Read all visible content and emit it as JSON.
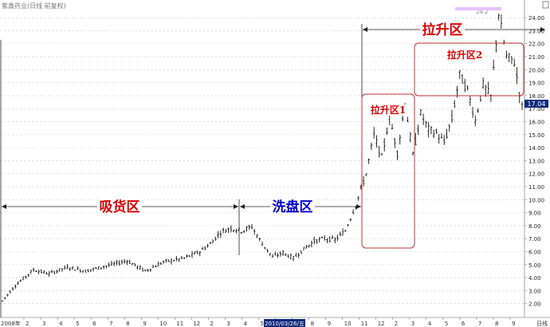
{
  "header": {
    "title": "紫鑫药业(日线 前复权)"
  },
  "price_tag": "17.04",
  "current_date": "2010/03/26/五",
  "top_value": "24.2",
  "bottom_right_label": "日线",
  "first_tick_label": "2008年",
  "colors": {
    "background": "#ffffff",
    "bars": "#111111",
    "grid": "#c8c8c8",
    "zone_red": "#d40000",
    "zone_blue": "#0000cc",
    "box_red": "#c83232"
  },
  "chart_data": {
    "type": "bar",
    "ylim": [
      1.0,
      24.5
    ],
    "yticks": [
      "2.00",
      "3.00",
      "4.00",
      "5.00",
      "6.00",
      "7.00",
      "8.00",
      "9.00",
      "10.00",
      "11.00",
      "12.00",
      "13.00",
      "14.00",
      "15.00",
      "16.00",
      "17.00",
      "18.00",
      "19.00",
      "20.00",
      "21.00",
      "22.00",
      "23.00",
      "24.00"
    ],
    "month_ticks": [
      "2",
      "3",
      "4",
      "5",
      "6",
      "7",
      "8",
      "9",
      "10",
      "11",
      "12",
      "2",
      "3",
      "4",
      "5",
      "6",
      "7",
      "8",
      "9",
      "10",
      "11",
      "12",
      "2",
      "3",
      "4",
      "5",
      "6",
      "7",
      "8",
      "9"
    ],
    "price_path": [
      [
        0,
        2.2
      ],
      [
        5,
        3.4
      ],
      [
        12,
        4.6
      ],
      [
        18,
        4.3
      ],
      [
        25,
        4.8
      ],
      [
        32,
        4.5
      ],
      [
        40,
        4.9
      ],
      [
        48,
        5.3
      ],
      [
        55,
        4.5
      ],
      [
        62,
        5.2
      ],
      [
        70,
        5.5
      ],
      [
        76,
        6.0
      ],
      [
        80,
        6.6
      ],
      [
        84,
        7.5
      ],
      [
        88,
        7.8
      ],
      [
        92,
        7.6
      ],
      [
        96,
        7.9
      ],
      [
        100,
        6.6
      ],
      [
        104,
        5.6
      ],
      [
        108,
        5.9
      ],
      [
        112,
        5.5
      ],
      [
        116,
        6.2
      ],
      [
        120,
        6.8
      ],
      [
        124,
        7.0
      ],
      [
        128,
        6.9
      ],
      [
        132,
        7.6
      ],
      [
        136,
        9.6
      ],
      [
        140,
        12.0
      ],
      [
        143,
        15.0
      ],
      [
        146,
        13.2
      ],
      [
        149,
        16.4
      ],
      [
        152,
        13.6
      ],
      [
        155,
        17.5
      ],
      [
        158,
        13.4
      ],
      [
        161,
        16.6
      ],
      [
        164,
        15.4
      ],
      [
        167,
        15.1
      ],
      [
        170,
        14.4
      ],
      [
        173,
        16.2
      ],
      [
        176,
        19.6
      ],
      [
        179,
        18.4
      ],
      [
        182,
        16.1
      ],
      [
        185,
        18.8
      ],
      [
        188,
        17.9
      ],
      [
        191,
        24.3
      ],
      [
        194,
        21.0
      ],
      [
        197,
        20.6
      ],
      [
        200,
        17.1
      ]
    ],
    "zones": [
      {
        "label": "吸货区",
        "color": "red"
      },
      {
        "label": "洗盘区",
        "color": "blue"
      },
      {
        "label": "拉升区",
        "color": "red"
      },
      {
        "label": "拉升区1",
        "color": "red"
      },
      {
        "label": "拉升区2",
        "color": "red"
      }
    ]
  }
}
